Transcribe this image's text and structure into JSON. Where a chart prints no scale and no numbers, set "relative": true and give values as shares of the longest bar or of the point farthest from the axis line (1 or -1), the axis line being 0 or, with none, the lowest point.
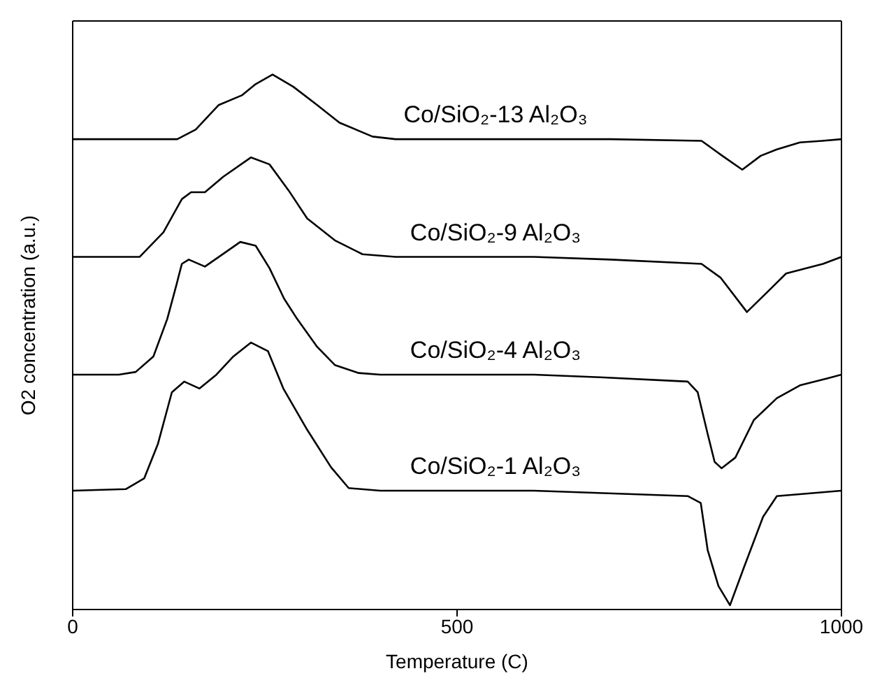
{
  "chart_data": {
    "type": "line",
    "relative": true,
    "xlabel": "Temperature (C)",
    "ylabel": "O2 concentration (a.u.)",
    "xlim": [
      0,
      1000
    ],
    "xticks": [
      0,
      500,
      1000
    ],
    "marker": "none",
    "line_style": "solid",
    "series": [
      {
        "name": "Co/SiO₂-13 Al₂O₃",
        "color": "#000000",
        "x": [
          0,
          100,
          136,
          160,
          190,
          220,
          238,
          260,
          287,
          318,
          347,
          390,
          420,
          500,
          700,
          818,
          845,
          871,
          895,
          916,
          946,
          975,
          1000
        ],
        "values": [
          0.879,
          0.879,
          0.879,
          0.897,
          0.943,
          0.961,
          0.982,
          1.0,
          0.977,
          0.943,
          0.91,
          0.884,
          0.879,
          0.879,
          0.879,
          0.876,
          0.848,
          0.822,
          0.848,
          0.86,
          0.873,
          0.876,
          0.879
        ]
      },
      {
        "name": "Co/SiO₂-9 Al₂O₃",
        "color": "#000000",
        "x": [
          0,
          87,
          118,
          142,
          154,
          172,
          196,
          232,
          256,
          281,
          305,
          341,
          377,
          420,
          600,
          700,
          818,
          843,
          877,
          904,
          928,
          976,
          1000
        ],
        "values": [
          0.659,
          0.659,
          0.705,
          0.767,
          0.78,
          0.78,
          0.809,
          0.845,
          0.832,
          0.783,
          0.731,
          0.69,
          0.664,
          0.659,
          0.659,
          0.654,
          0.646,
          0.62,
          0.556,
          0.594,
          0.628,
          0.646,
          0.659
        ]
      },
      {
        "name": "Co/SiO₂-4 Al₂O₃",
        "color": "#000000",
        "x": [
          0,
          60,
          82,
          105,
          123,
          135,
          142,
          151,
          172,
          190,
          218,
          238,
          256,
          275,
          292,
          318,
          341,
          372,
          400,
          600,
          686,
          800,
          813,
          826,
          835,
          844,
          862,
          886,
          916,
          946,
          982,
          1000
        ],
        "values": [
          0.439,
          0.439,
          0.444,
          0.473,
          0.543,
          0.607,
          0.646,
          0.654,
          0.641,
          0.659,
          0.687,
          0.68,
          0.638,
          0.581,
          0.543,
          0.491,
          0.457,
          0.442,
          0.439,
          0.439,
          0.434,
          0.426,
          0.406,
          0.328,
          0.276,
          0.264,
          0.284,
          0.354,
          0.395,
          0.419,
          0.432,
          0.439
        ]
      },
      {
        "name": "Co/SiO₂-1 Al₂O₃",
        "color": "#000000",
        "x": [
          0,
          69,
          93,
          111,
          129,
          145,
          165,
          187,
          209,
          232,
          254,
          274,
          305,
          336,
          359,
          400,
          600,
          800,
          817,
          826,
          840,
          855,
          873,
          898,
          916,
          1000
        ],
        "values": [
          0.222,
          0.225,
          0.245,
          0.31,
          0.406,
          0.426,
          0.413,
          0.439,
          0.473,
          0.499,
          0.483,
          0.413,
          0.336,
          0.266,
          0.227,
          0.222,
          0.222,
          0.212,
          0.199,
          0.111,
          0.044,
          0.008,
          0.078,
          0.173,
          0.212,
          0.222
        ]
      }
    ]
  }
}
